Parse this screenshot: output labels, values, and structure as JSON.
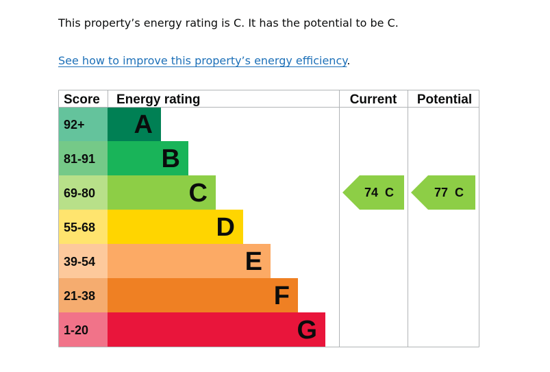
{
  "summary": {
    "text": "This property’s energy rating is C. It has the potential to be C."
  },
  "improve": {
    "link_text": "See how to improve this property’s energy efficiency",
    "suffix": "."
  },
  "chart_data": {
    "type": "table",
    "headers": {
      "score": "Score",
      "rating": "Energy rating",
      "current": "Current",
      "potential": "Potential"
    },
    "bands": [
      {
        "letter": "A",
        "range": "92+",
        "color": "#008054",
        "score_color": "#64c39c"
      },
      {
        "letter": "B",
        "range": "81-91",
        "color": "#19b459",
        "score_color": "#75c988"
      },
      {
        "letter": "C",
        "range": "69-80",
        "color": "#8dce46",
        "score_color": "#b8e089"
      },
      {
        "letter": "D",
        "range": "55-68",
        "color": "#ffd500",
        "score_color": "#ffe46e"
      },
      {
        "letter": "E",
        "range": "39-54",
        "color": "#fcaa65",
        "score_color": "#fdc99c"
      },
      {
        "letter": "F",
        "range": "21-38",
        "color": "#ef8023",
        "score_color": "#f5ac6f"
      },
      {
        "letter": "G",
        "range": "1-20",
        "color": "#e9153b",
        "score_color": "#f17389"
      }
    ],
    "current": {
      "score": 74,
      "band": "C",
      "label": "74  C"
    },
    "potential": {
      "score": 77,
      "band": "C",
      "label": "77  C"
    }
  }
}
